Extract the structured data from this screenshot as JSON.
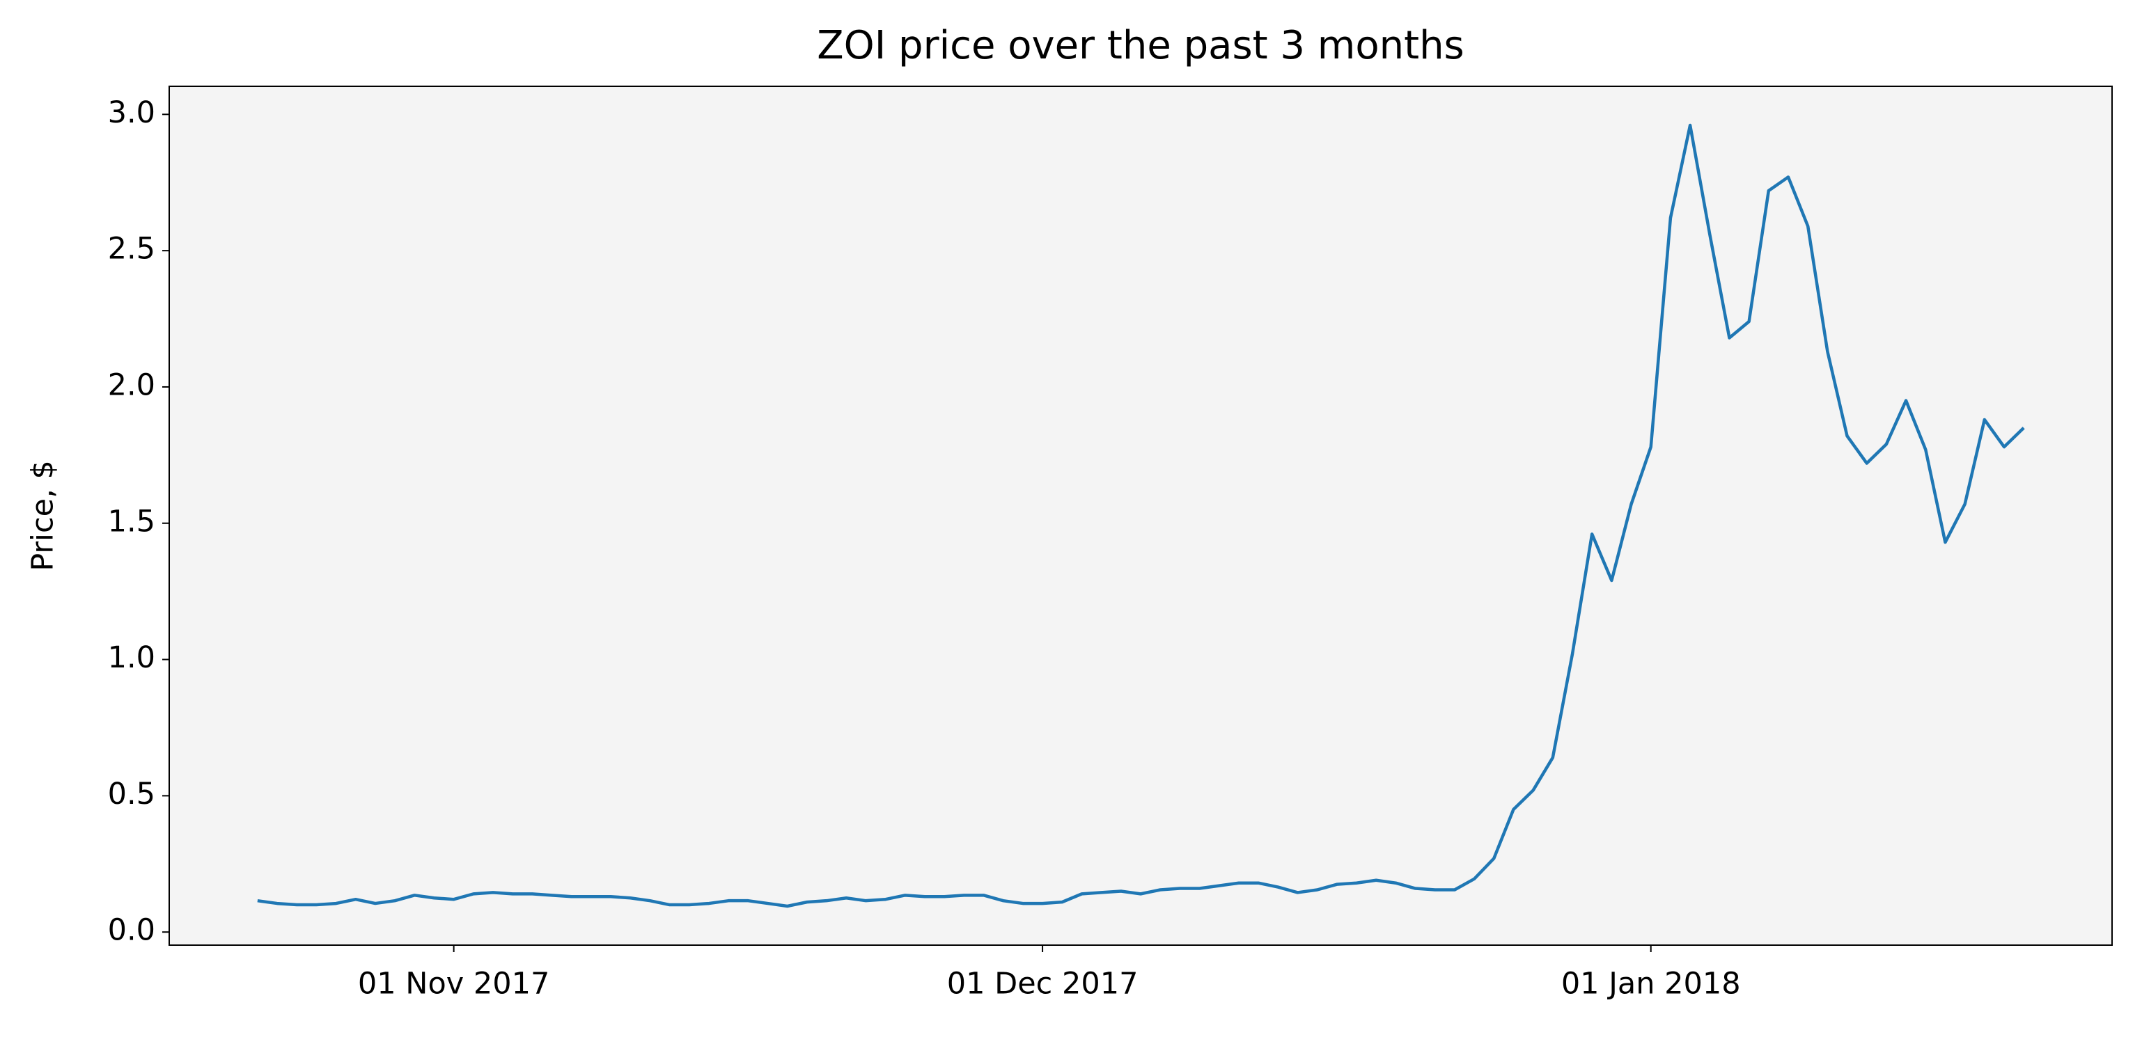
{
  "chart_data": {
    "type": "line",
    "title": "ZOI price over the past 3 months",
    "ylabel": "Price, $",
    "x": [
      "2017-10-22",
      "2017-10-23",
      "2017-10-24",
      "2017-10-25",
      "2017-10-26",
      "2017-10-27",
      "2017-10-28",
      "2017-10-29",
      "2017-10-30",
      "2017-10-31",
      "2017-11-01",
      "2017-11-02",
      "2017-11-03",
      "2017-11-04",
      "2017-11-05",
      "2017-11-06",
      "2017-11-07",
      "2017-11-08",
      "2017-11-09",
      "2017-11-10",
      "2017-11-11",
      "2017-11-12",
      "2017-11-13",
      "2017-11-14",
      "2017-11-15",
      "2017-11-16",
      "2017-11-17",
      "2017-11-18",
      "2017-11-19",
      "2017-11-20",
      "2017-11-21",
      "2017-11-22",
      "2017-11-23",
      "2017-11-24",
      "2017-11-25",
      "2017-11-26",
      "2017-11-27",
      "2017-11-28",
      "2017-11-29",
      "2017-11-30",
      "2017-12-01",
      "2017-12-02",
      "2017-12-03",
      "2017-12-04",
      "2017-12-05",
      "2017-12-06",
      "2017-12-07",
      "2017-12-08",
      "2017-12-09",
      "2017-12-10",
      "2017-12-11",
      "2017-12-12",
      "2017-12-13",
      "2017-12-14",
      "2017-12-15",
      "2017-12-16",
      "2017-12-17",
      "2017-12-18",
      "2017-12-19",
      "2017-12-20",
      "2017-12-21",
      "2017-12-22",
      "2017-12-23",
      "2017-12-24",
      "2017-12-25",
      "2017-12-26",
      "2017-12-27",
      "2017-12-28",
      "2017-12-29",
      "2017-12-30",
      "2017-12-31",
      "2018-01-01",
      "2018-01-02",
      "2018-01-03",
      "2018-01-04",
      "2018-01-05",
      "2018-01-06",
      "2018-01-07",
      "2018-01-08",
      "2018-01-09",
      "2018-01-10",
      "2018-01-11",
      "2018-01-12",
      "2018-01-13",
      "2018-01-14",
      "2018-01-15",
      "2018-01-16",
      "2018-01-17",
      "2018-01-18",
      "2018-01-19",
      "2018-01-20"
    ],
    "values": [
      0.115,
      0.105,
      0.1,
      0.1,
      0.105,
      0.12,
      0.105,
      0.115,
      0.135,
      0.125,
      0.12,
      0.14,
      0.145,
      0.14,
      0.14,
      0.135,
      0.13,
      0.13,
      0.13,
      0.125,
      0.115,
      0.1,
      0.1,
      0.105,
      0.115,
      0.115,
      0.105,
      0.095,
      0.11,
      0.115,
      0.125,
      0.115,
      0.12,
      0.135,
      0.13,
      0.13,
      0.135,
      0.135,
      0.115,
      0.105,
      0.105,
      0.11,
      0.14,
      0.145,
      0.15,
      0.14,
      0.155,
      0.16,
      0.16,
      0.17,
      0.18,
      0.18,
      0.165,
      0.145,
      0.155,
      0.175,
      0.18,
      0.19,
      0.18,
      0.16,
      0.155,
      0.155,
      0.195,
      0.27,
      0.45,
      0.52,
      0.64,
      1.02,
      1.46,
      1.29,
      1.57,
      1.78,
      2.62,
      2.96,
      2.56,
      2.18,
      2.24,
      2.72,
      2.77,
      2.59,
      2.13,
      1.82,
      1.72,
      1.79,
      1.95,
      1.77,
      1.43,
      1.57,
      1.88,
      1.78,
      1.85
    ],
    "color": "#1f77b4",
    "xlim": [
      "2017-10-17T12:00Z",
      "2018-01-24T12:00Z"
    ],
    "xticks": [
      {
        "value": "2017-11-01",
        "label": "01 Nov 2017"
      },
      {
        "value": "2017-12-01",
        "label": "01 Dec 2017"
      },
      {
        "value": "2018-01-01",
        "label": "01 Jan 2018"
      }
    ],
    "ylim": [
      -0.048,
      3.103
    ],
    "yticks": [
      {
        "value": 0,
        "label": "0.0"
      },
      0.5,
      {
        "value": 1,
        "label": "1.0"
      },
      1.5,
      {
        "value": 2,
        "label": "2.0"
      },
      2.5,
      {
        "value": 3,
        "label": "3.0"
      }
    ],
    "background": "#f4f4f4"
  }
}
